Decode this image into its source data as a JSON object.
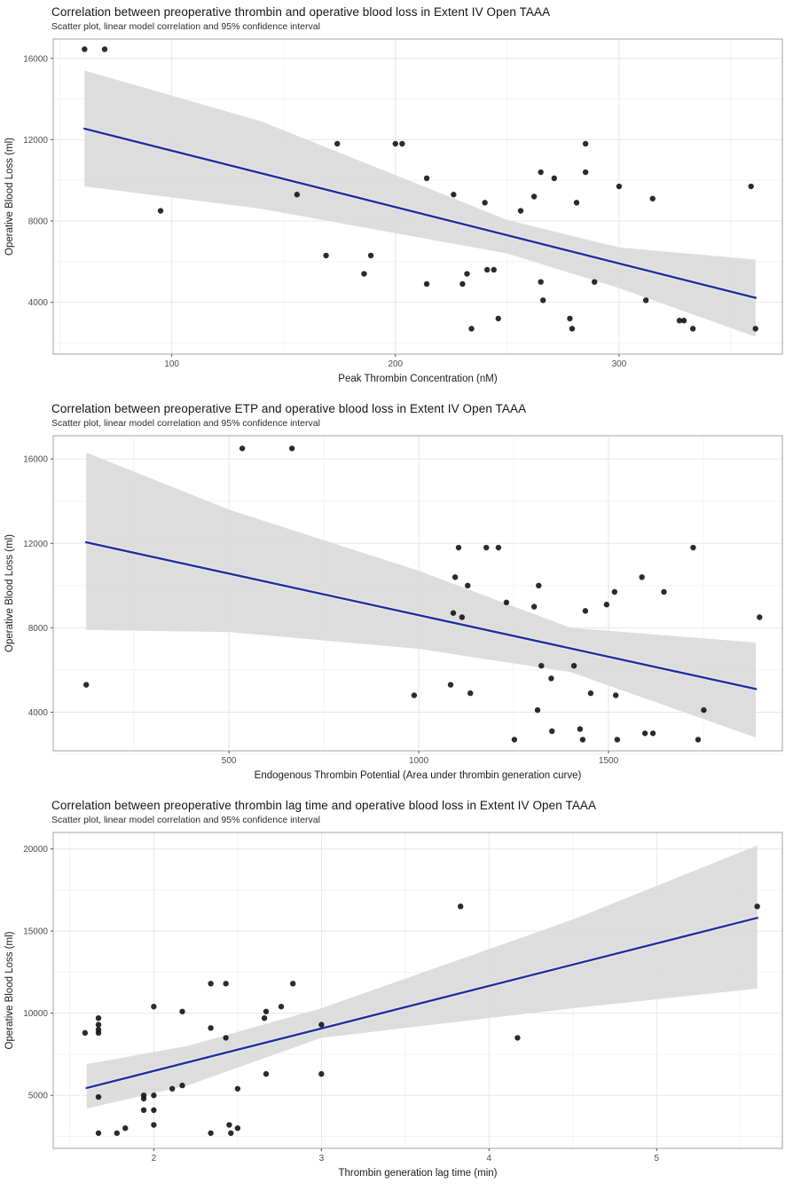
{
  "figure": {
    "background": "#ffffff",
    "ylabel_shared": "Operative Blood Loss (ml)"
  },
  "palette": {
    "regression_line": "#21309e",
    "line_casing": "#ececec",
    "confidence_band": "#d9d9d9",
    "point": "#141414",
    "grid_major": "#e7e7e7",
    "grid_minor": "#f3f3f3",
    "panel_border": "#a3a3a3",
    "title_color": "#141414",
    "subtitle_color": "#2b2b2b",
    "tick_label_color": "#4d4d4d",
    "axis_label_color": "#1a1a1a"
  },
  "chart_data": [
    {
      "type": "scatter",
      "title": "Correlation between preoperative thrombin and operative blood loss in Extent IV Open TAAA",
      "subtitle": "Scatter plot, linear model correlation and 95% confidence interval",
      "xlabel": "Peak Thrombin Concentration (nM)",
      "ylabel": "Operative Blood Loss (ml)",
      "legend": "none",
      "grid": true,
      "xlim": [
        47,
        373
      ],
      "ylim": [
        1450,
        16950
      ],
      "xticks": [
        100,
        200,
        300
      ],
      "xticks_minor": [
        50,
        150,
        250,
        350
      ],
      "yticks": [
        4000,
        8000,
        12000,
        16000
      ],
      "yticks_minor": [
        2000,
        6000,
        10000,
        14000
      ],
      "points": [
        [
          61,
          16450
        ],
        [
          70,
          16450
        ],
        [
          95,
          8500
        ],
        [
          156,
          9300
        ],
        [
          174,
          11800
        ],
        [
          169,
          6300
        ],
        [
          189,
          6300
        ],
        [
          186,
          5400
        ],
        [
          200,
          11800
        ],
        [
          203,
          11800
        ],
        [
          214,
          10100
        ],
        [
          226,
          9300
        ],
        [
          240,
          8900
        ],
        [
          256,
          8500
        ],
        [
          262,
          9200
        ],
        [
          265,
          10400
        ],
        [
          271,
          10100
        ],
        [
          281,
          8900
        ],
        [
          285,
          11800
        ],
        [
          285,
          10400
        ],
        [
          300,
          9700
        ],
        [
          315,
          9100
        ],
        [
          359,
          9700
        ],
        [
          214,
          4900
        ],
        [
          230,
          4900
        ],
        [
          232,
          5400
        ],
        [
          241,
          5600
        ],
        [
          244,
          5600
        ],
        [
          234,
          2700
        ],
        [
          246,
          3200
        ],
        [
          265,
          5000
        ],
        [
          266,
          4100
        ],
        [
          278,
          3200
        ],
        [
          279,
          2700
        ],
        [
          289,
          5000
        ],
        [
          312,
          4100
        ],
        [
          327,
          3100
        ],
        [
          329,
          3100
        ],
        [
          333,
          2700
        ],
        [
          361,
          2700
        ]
      ],
      "regression_line": {
        "x1": 61,
        "y1": 12540,
        "x2": 361,
        "y2": 4220
      },
      "confidence_band": [
        [
          61,
          9700,
          15400
        ],
        [
          140,
          8600,
          12900
        ],
        [
          250,
          6400,
          8050
        ],
        [
          300,
          4700,
          6700
        ],
        [
          361,
          2300,
          6100
        ]
      ]
    },
    {
      "type": "scatter",
      "title": "Correlation between preoperative ETP and operative blood loss in Extent IV Open TAAA",
      "subtitle": "Scatter plot, linear model correlation and 95% confidence interval",
      "xlabel": "Endogenous Thrombin Potential (Area under thrombin generation curve)",
      "ylabel": "Operative Blood Loss (ml)",
      "legend": "none",
      "grid": true,
      "xlim": [
        37,
        1958
      ],
      "ylim": [
        2170,
        17100
      ],
      "xticks": [
        500,
        1000,
        1500
      ],
      "xticks_minor": [
        250,
        750,
        1250,
        1750
      ],
      "yticks": [
        4000,
        8000,
        12000,
        16000
      ],
      "yticks_minor": [
        2000,
        6000,
        10000,
        14000
      ],
      "points": [
        [
          535,
          16500
        ],
        [
          666,
          16500
        ],
        [
          124,
          5300
        ],
        [
          988,
          4800
        ],
        [
          1084,
          5300
        ],
        [
          1091,
          8700
        ],
        [
          1096,
          10400
        ],
        [
          1105,
          11800
        ],
        [
          1114,
          8500
        ],
        [
          1129,
          10000
        ],
        [
          1136,
          4900
        ],
        [
          1178,
          11800
        ],
        [
          1210,
          11800
        ],
        [
          1231,
          9200
        ],
        [
          1252,
          2700
        ],
        [
          1304,
          9000
        ],
        [
          1313,
          4100
        ],
        [
          1316,
          10000
        ],
        [
          1323,
          6200
        ],
        [
          1349,
          5600
        ],
        [
          1351,
          3100
        ],
        [
          1409,
          6200
        ],
        [
          1425,
          3200
        ],
        [
          1432,
          2700
        ],
        [
          1439,
          8800
        ],
        [
          1453,
          4900
        ],
        [
          1495,
          9100
        ],
        [
          1516,
          9700
        ],
        [
          1519,
          4800
        ],
        [
          1523,
          2700
        ],
        [
          1588,
          10400
        ],
        [
          1596,
          3000
        ],
        [
          1617,
          3000
        ],
        [
          1646,
          9700
        ],
        [
          1723,
          11800
        ],
        [
          1736,
          2700
        ],
        [
          1751,
          4100
        ],
        [
          1898,
          8500
        ]
      ],
      "regression_line": {
        "x1": 124,
        "y1": 12050,
        "x2": 1888,
        "y2": 5100
      },
      "confidence_band": [
        [
          124,
          7900,
          16300
        ],
        [
          500,
          7800,
          13600
        ],
        [
          1000,
          7000,
          10700
        ],
        [
          1400,
          5900,
          8000
        ],
        [
          1888,
          2800,
          7300
        ]
      ]
    },
    {
      "type": "scatter",
      "title": "Correlation between preoperative thrombin lag time and operative blood loss in Extent IV Open TAAA",
      "subtitle": "Scatter plot, linear model correlation and 95% confidence interval",
      "xlabel": "Thrombin generation lag time (min)",
      "ylabel": "Operative Blood Loss (ml)",
      "legend": "none",
      "grid": true,
      "xlim": [
        1.4,
        5.75
      ],
      "ylim": [
        1770,
        21000
      ],
      "xticks": [
        2,
        3,
        4,
        5
      ],
      "xticks_minor": [
        1.5,
        2.5,
        3.5,
        4.5,
        5.5
      ],
      "yticks": [
        5000,
        10000,
        15000,
        20000
      ],
      "yticks_minor": [
        2500,
        7500,
        12500,
        17500
      ],
      "points": [
        [
          1.59,
          8800
        ],
        [
          1.67,
          9700
        ],
        [
          1.67,
          9300
        ],
        [
          1.67,
          9000
        ],
        [
          1.67,
          8800
        ],
        [
          1.67,
          4900
        ],
        [
          1.67,
          2700
        ],
        [
          1.78,
          2700
        ],
        [
          1.83,
          3000
        ],
        [
          1.94,
          5000
        ],
        [
          1.94,
          4800
        ],
        [
          1.94,
          4100
        ],
        [
          2.0,
          5000
        ],
        [
          2.0,
          4100
        ],
        [
          2.0,
          3200
        ],
        [
          2.0,
          10400
        ],
        [
          2.11,
          5400
        ],
        [
          2.17,
          5600
        ],
        [
          2.17,
          10100
        ],
        [
          2.34,
          11800
        ],
        [
          2.43,
          11800
        ],
        [
          2.34,
          9100
        ],
        [
          2.34,
          2700
        ],
        [
          2.43,
          8500
        ],
        [
          2.45,
          3200
        ],
        [
          2.46,
          2700
        ],
        [
          2.5,
          3000
        ],
        [
          2.5,
          5400
        ],
        [
          2.67,
          6300
        ],
        [
          2.67,
          10100
        ],
        [
          2.66,
          9700
        ],
        [
          2.76,
          10400
        ],
        [
          2.83,
          11800
        ],
        [
          3.0,
          9300
        ],
        [
          3.0,
          6300
        ],
        [
          3.83,
          16500
        ],
        [
          4.17,
          8500
        ],
        [
          5.6,
          16500
        ]
      ],
      "regression_line": {
        "x1": 1.6,
        "y1": 5450,
        "x2": 5.6,
        "y2": 15800
      },
      "confidence_band": [
        [
          1.6,
          4200,
          6900
        ],
        [
          2.2,
          5600,
          8000
        ],
        [
          3.0,
          8500,
          10300
        ],
        [
          4.5,
          10300,
          15700
        ],
        [
          5.6,
          11500,
          20200
        ]
      ]
    }
  ]
}
